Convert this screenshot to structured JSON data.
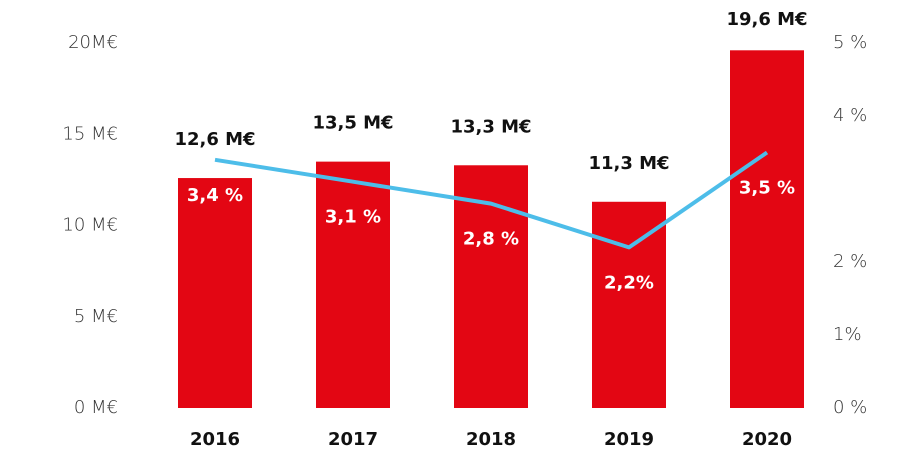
{
  "chart_data": {
    "type": "bar",
    "categories": [
      "2016",
      "2017",
      "2018",
      "2019",
      "2020"
    ],
    "series": [
      {
        "color": "#e30613",
        "values": [
          12.6,
          13.5,
          13.3,
          11.3,
          19.6
        ],
        "value_labels": [
          "12,6 M€",
          "13,5 M€",
          "13,3 M€",
          "11,3 M€",
          "19,6 M€"
        ]
      },
      {
        "type": "line",
        "axis": "y2",
        "color": "#4dbde9",
        "values": [
          3.4,
          3.1,
          2.8,
          2.2,
          3.5
        ],
        "value_labels": [
          "3,4 %",
          "3,1 %",
          "2,8 %",
          "2,2%",
          "3,5 %"
        ]
      }
    ],
    "ylim": [
      0,
      20
    ],
    "yticks": [
      {
        "value": 0,
        "label": "0 M€"
      },
      {
        "value": 5,
        "label": "5 M€"
      },
      {
        "value": 10,
        "label": "10 M€"
      },
      {
        "value": 15,
        "label": "15 M€"
      },
      {
        "value": 20,
        "label": "20M€"
      }
    ],
    "y2lim": [
      0,
      5
    ],
    "y2ticks": [
      {
        "value": 0,
        "label": "0 %"
      },
      {
        "value": 1,
        "label": "1%"
      },
      {
        "value": 2,
        "label": "2 %"
      },
      {
        "value": 4,
        "label": "4 %"
      },
      {
        "value": 5,
        "label": "5 %"
      }
    ]
  }
}
